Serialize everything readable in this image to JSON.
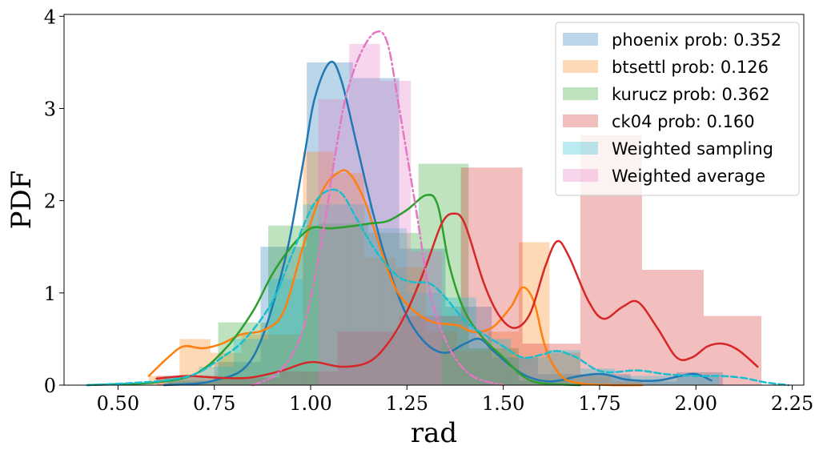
{
  "chart_data": {
    "type": "histogram+kde",
    "xlabel": "rad",
    "ylabel": "PDF",
    "xlim": [
      0.36,
      2.28
    ],
    "ylim": [
      0,
      4.02
    ],
    "xticks": [
      "0.50",
      "0.75",
      "1.00",
      "1.25",
      "1.50",
      "1.75",
      "2.00",
      "2.25"
    ],
    "yticks": [
      "0",
      "1",
      "2",
      "3",
      "4"
    ],
    "legend_position": "top-right",
    "series": [
      {
        "name": "phoenix prob: 0.352",
        "color": "#1f77b4",
        "kde_style": "solid",
        "hist": [
          [
            0.63,
            0.75,
            0.03
          ],
          [
            0.75,
            0.87,
            0.25
          ],
          [
            0.87,
            0.99,
            1.5
          ],
          [
            0.99,
            1.11,
            3.5
          ],
          [
            1.11,
            1.23,
            3.33
          ],
          [
            1.23,
            1.35,
            1.48
          ],
          [
            1.35,
            1.47,
            0.85
          ],
          [
            1.47,
            1.59,
            0.3
          ],
          [
            1.59,
            1.71,
            0.12
          ],
          [
            1.71,
            1.83,
            0.12
          ],
          [
            1.83,
            1.95,
            0.04
          ],
          [
            1.95,
            2.07,
            0.14
          ]
        ],
        "kde": [
          [
            0.62,
            0.0
          ],
          [
            0.75,
            0.05
          ],
          [
            0.85,
            0.3
          ],
          [
            0.93,
            1.3
          ],
          [
            0.98,
            2.4
          ],
          [
            1.01,
            3.1
          ],
          [
            1.05,
            3.5
          ],
          [
            1.08,
            3.3
          ],
          [
            1.12,
            2.6
          ],
          [
            1.16,
            1.9
          ],
          [
            1.2,
            1.3
          ],
          [
            1.25,
            0.75
          ],
          [
            1.3,
            0.45
          ],
          [
            1.35,
            0.35
          ],
          [
            1.4,
            0.45
          ],
          [
            1.44,
            0.5
          ],
          [
            1.48,
            0.35
          ],
          [
            1.55,
            0.12
          ],
          [
            1.62,
            0.04
          ],
          [
            1.7,
            0.1
          ],
          [
            1.76,
            0.12
          ],
          [
            1.82,
            0.06
          ],
          [
            1.9,
            0.05
          ],
          [
            1.96,
            0.1
          ],
          [
            2.0,
            0.12
          ],
          [
            2.04,
            0.05
          ]
        ]
      },
      {
        "name": "btsettl prob: 0.126",
        "color": "#ff7f0e",
        "kde_style": "solid",
        "hist": [
          [
            0.58,
            0.66,
            0.1
          ],
          [
            0.66,
            0.74,
            0.5
          ],
          [
            0.74,
            0.82,
            0.35
          ],
          [
            0.82,
            0.9,
            0.55
          ],
          [
            0.9,
            0.98,
            0.55
          ],
          [
            0.98,
            1.06,
            2.53
          ],
          [
            1.06,
            1.14,
            2.3
          ],
          [
            1.14,
            1.22,
            1.38
          ],
          [
            1.22,
            1.3,
            1.28
          ],
          [
            1.3,
            1.38,
            0.58
          ],
          [
            1.38,
            1.46,
            0.37
          ],
          [
            1.46,
            1.54,
            0.58
          ],
          [
            1.54,
            1.62,
            1.55
          ],
          [
            1.62,
            1.7,
            0.35
          ],
          [
            1.7,
            1.78,
            0.1
          ],
          [
            1.78,
            1.86,
            0.04
          ]
        ],
        "kde": [
          [
            0.58,
            0.1
          ],
          [
            0.63,
            0.3
          ],
          [
            0.67,
            0.42
          ],
          [
            0.72,
            0.4
          ],
          [
            0.77,
            0.45
          ],
          [
            0.82,
            0.55
          ],
          [
            0.88,
            0.6
          ],
          [
            0.93,
            0.8
          ],
          [
            0.98,
            1.5
          ],
          [
            1.03,
            2.1
          ],
          [
            1.07,
            2.3
          ],
          [
            1.1,
            2.3
          ],
          [
            1.14,
            2.0
          ],
          [
            1.18,
            1.5
          ],
          [
            1.22,
            1.05
          ],
          [
            1.27,
            0.8
          ],
          [
            1.32,
            0.68
          ],
          [
            1.38,
            0.65
          ],
          [
            1.42,
            0.58
          ],
          [
            1.47,
            0.62
          ],
          [
            1.52,
            0.85
          ],
          [
            1.55,
            1.06
          ],
          [
            1.58,
            0.9
          ],
          [
            1.61,
            0.4
          ],
          [
            1.65,
            0.1
          ],
          [
            1.7,
            0.02
          ],
          [
            1.78,
            0.0
          ],
          [
            1.86,
            0.0
          ]
        ]
      },
      {
        "name": "kurucz prob: 0.362",
        "color": "#2ca02c",
        "kde_style": "solid",
        "hist": [
          [
            0.63,
            0.76,
            0.05
          ],
          [
            0.76,
            0.89,
            0.68
          ],
          [
            0.89,
            1.02,
            1.73
          ],
          [
            1.02,
            1.15,
            1.75
          ],
          [
            1.15,
            1.28,
            1.65
          ],
          [
            1.28,
            1.41,
            2.4
          ],
          [
            1.41,
            1.54,
            0.4
          ],
          [
            1.54,
            1.67,
            0.05
          ]
        ],
        "kde": [
          [
            0.42,
            0.0
          ],
          [
            0.5,
            0.01
          ],
          [
            0.6,
            0.03
          ],
          [
            0.7,
            0.12
          ],
          [
            0.78,
            0.4
          ],
          [
            0.85,
            0.8
          ],
          [
            0.9,
            1.2
          ],
          [
            0.95,
            1.5
          ],
          [
            1.0,
            1.7
          ],
          [
            1.05,
            1.7
          ],
          [
            1.1,
            1.72
          ],
          [
            1.15,
            1.75
          ],
          [
            1.2,
            1.78
          ],
          [
            1.25,
            1.9
          ],
          [
            1.3,
            2.06
          ],
          [
            1.33,
            1.95
          ],
          [
            1.36,
            1.3
          ],
          [
            1.4,
            0.8
          ],
          [
            1.45,
            0.5
          ],
          [
            1.5,
            0.3
          ],
          [
            1.55,
            0.1
          ],
          [
            1.6,
            0.02
          ],
          [
            1.7,
            0.0
          ]
        ]
      },
      {
        "name": "ck04 prob: 0.160",
        "color": "#d62728",
        "kde_style": "solid",
        "hist": [
          [
            0.6,
            0.76,
            0.1
          ],
          [
            0.76,
            0.92,
            0.08
          ],
          [
            0.92,
            1.07,
            0.15
          ],
          [
            1.07,
            1.23,
            0.58
          ],
          [
            1.23,
            1.39,
            0.75
          ],
          [
            1.39,
            1.55,
            2.36
          ],
          [
            1.55,
            1.7,
            0.45
          ],
          [
            1.7,
            1.86,
            2.71
          ],
          [
            1.86,
            2.02,
            1.25
          ],
          [
            2.02,
            2.17,
            0.75
          ]
        ],
        "kde": [
          [
            0.6,
            0.07
          ],
          [
            0.68,
            0.1
          ],
          [
            0.76,
            0.08
          ],
          [
            0.84,
            0.08
          ],
          [
            0.92,
            0.15
          ],
          [
            1.0,
            0.25
          ],
          [
            1.08,
            0.2
          ],
          [
            1.15,
            0.25
          ],
          [
            1.2,
            0.45
          ],
          [
            1.25,
            0.8
          ],
          [
            1.3,
            1.3
          ],
          [
            1.34,
            1.75
          ],
          [
            1.37,
            1.86
          ],
          [
            1.4,
            1.75
          ],
          [
            1.45,
            1.1
          ],
          [
            1.49,
            0.75
          ],
          [
            1.53,
            0.62
          ],
          [
            1.57,
            0.78
          ],
          [
            1.61,
            1.3
          ],
          [
            1.64,
            1.56
          ],
          [
            1.67,
            1.4
          ],
          [
            1.72,
            0.92
          ],
          [
            1.76,
            0.72
          ],
          [
            1.81,
            0.85
          ],
          [
            1.85,
            0.9
          ],
          [
            1.9,
            0.62
          ],
          [
            1.95,
            0.3
          ],
          [
            1.99,
            0.3
          ],
          [
            2.03,
            0.42
          ],
          [
            2.07,
            0.45
          ],
          [
            2.11,
            0.38
          ],
          [
            2.16,
            0.2
          ]
        ]
      },
      {
        "name": "Weighted sampling",
        "color": "#17becf",
        "kde_style": "dashed",
        "hist": [
          [
            0.62,
            0.71,
            0.1
          ],
          [
            0.71,
            0.8,
            0.2
          ],
          [
            0.8,
            0.89,
            0.5
          ],
          [
            0.89,
            0.98,
            1.15
          ],
          [
            0.98,
            1.07,
            1.96
          ],
          [
            1.07,
            1.16,
            1.96
          ],
          [
            1.16,
            1.25,
            1.7
          ],
          [
            1.25,
            1.34,
            1.0
          ],
          [
            1.34,
            1.43,
            0.95
          ],
          [
            1.43,
            1.52,
            0.5
          ],
          [
            1.52,
            1.61,
            0.3
          ],
          [
            1.61,
            1.7,
            0.38
          ],
          [
            1.7,
            1.79,
            0.18
          ],
          [
            1.79,
            1.88,
            0.1
          ],
          [
            1.88,
            1.97,
            0.1
          ],
          [
            1.97,
            2.06,
            0.1
          ]
        ],
        "kde": [
          [
            0.42,
            0.0
          ],
          [
            0.52,
            0.02
          ],
          [
            0.62,
            0.05
          ],
          [
            0.7,
            0.12
          ],
          [
            0.77,
            0.3
          ],
          [
            0.83,
            0.5
          ],
          [
            0.9,
            0.9
          ],
          [
            0.95,
            1.4
          ],
          [
            1.0,
            1.9
          ],
          [
            1.04,
            2.1
          ],
          [
            1.08,
            2.08
          ],
          [
            1.12,
            1.8
          ],
          [
            1.17,
            1.45
          ],
          [
            1.22,
            1.2
          ],
          [
            1.26,
            1.12
          ],
          [
            1.31,
            1.1
          ],
          [
            1.35,
            0.95
          ],
          [
            1.4,
            0.7
          ],
          [
            1.45,
            0.55
          ],
          [
            1.5,
            0.42
          ],
          [
            1.55,
            0.3
          ],
          [
            1.6,
            0.33
          ],
          [
            1.64,
            0.37
          ],
          [
            1.69,
            0.3
          ],
          [
            1.74,
            0.17
          ],
          [
            1.78,
            0.14
          ],
          [
            1.85,
            0.16
          ],
          [
            1.92,
            0.12
          ],
          [
            2.0,
            0.1
          ],
          [
            2.06,
            0.1
          ],
          [
            2.12,
            0.08
          ],
          [
            2.18,
            0.03
          ],
          [
            2.24,
            0.0
          ]
        ]
      },
      {
        "name": "Weighted average",
        "color": "#e377c2",
        "kde_style": "dashdot",
        "hist": [
          [
            1.02,
            1.1,
            3.1
          ],
          [
            1.1,
            1.18,
            3.7
          ],
          [
            1.18,
            1.26,
            3.3
          ],
          [
            1.26,
            1.34,
            1.45
          ]
        ],
        "kde": [
          [
            0.85,
            0.0
          ],
          [
            0.92,
            0.15
          ],
          [
            0.98,
            0.6
          ],
          [
            1.03,
            1.6
          ],
          [
            1.06,
            2.4
          ],
          [
            1.09,
            3.1
          ],
          [
            1.13,
            3.6
          ],
          [
            1.17,
            3.83
          ],
          [
            1.2,
            3.7
          ],
          [
            1.23,
            3.0
          ],
          [
            1.27,
            2.0
          ],
          [
            1.31,
            1.0
          ],
          [
            1.36,
            0.4
          ],
          [
            1.42,
            0.1
          ],
          [
            1.5,
            0.0
          ]
        ]
      }
    ]
  }
}
